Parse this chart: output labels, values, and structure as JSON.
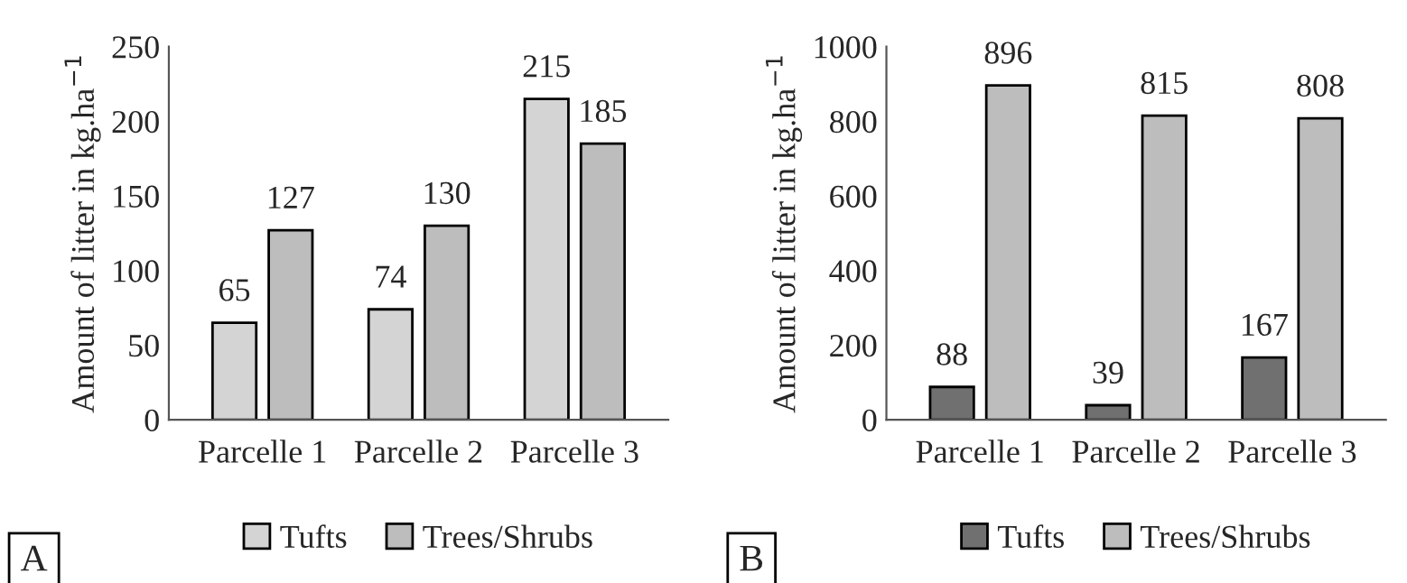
{
  "chart_data": [
    {
      "type": "bar",
      "ylabel": "Amount of litter in kg.ha$^{−1}$",
      "categories": [
        "Parcelle 1",
        "Parcelle 2",
        "Parcelle 3"
      ],
      "series": [
        {
          "name": "Tufts",
          "color": "#d4d4d4",
          "values": [
            65,
            74,
            215
          ]
        },
        {
          "name": "Trees/Shrubs",
          "color": "#bdbdbd",
          "values": [
            127,
            130,
            185
          ]
        }
      ],
      "ylim": [
        0,
        250
      ],
      "yticks": [
        0,
        50,
        100,
        150,
        200,
        250
      ],
      "data_labels": true,
      "grid": false,
      "legend": "bottom",
      "annotations": [
        "A"
      ]
    },
    {
      "type": "bar",
      "ylabel": "Amount of litter in kg.ha$^{−1}$",
      "categories": [
        "Parcelle 1",
        "Parcelle 2",
        "Parcelle 3"
      ],
      "series": [
        {
          "name": "Tufts",
          "color": "#707070",
          "values": [
            88,
            39,
            167
          ]
        },
        {
          "name": "Trees/Shrubs",
          "color": "#bdbdbd",
          "values": [
            896,
            815,
            808
          ]
        }
      ],
      "ylim": [
        0,
        1000
      ],
      "yticks": [
        0,
        200,
        400,
        600,
        800,
        1000
      ],
      "data_labels": true,
      "grid": false,
      "legend": "bottom",
      "annotations": [
        "B"
      ]
    }
  ]
}
